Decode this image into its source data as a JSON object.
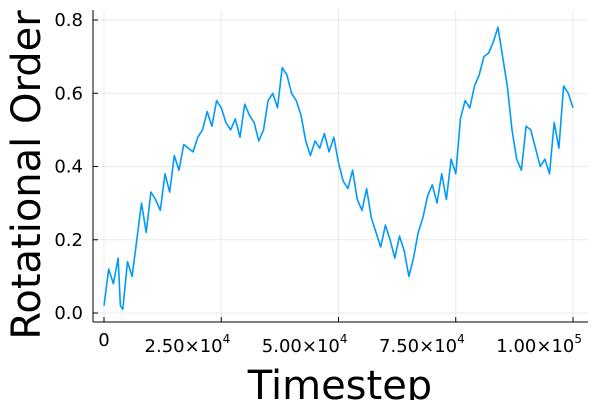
{
  "chart_data": {
    "type": "line",
    "title": "",
    "xlabel": "Timestep",
    "ylabel": "Rotational Order",
    "xlim": [
      0,
      100000
    ],
    "ylim": [
      0,
      0.8
    ],
    "grid": true,
    "legend": "none",
    "line_color": "#009af9",
    "x_ticks": [
      0,
      25000,
      50000,
      75000,
      100000
    ],
    "x_tick_labels": [
      {
        "base": "0",
        "exp": ""
      },
      {
        "base": "2.50×10",
        "exp": "4"
      },
      {
        "base": "5.00×10",
        "exp": "4"
      },
      {
        "base": "7.50×10",
        "exp": "4"
      },
      {
        "base": "1.00×10",
        "exp": "5"
      }
    ],
    "y_ticks": [
      0.0,
      0.2,
      0.4,
      0.6,
      0.8
    ],
    "y_tick_labels": [
      "0.0",
      "0.2",
      "0.4",
      "0.6",
      "0.8"
    ],
    "series": [
      {
        "x": [
          0,
          1000,
          2000,
          3000,
          3500,
          4000,
          5000,
          6000,
          7000,
          8000,
          9000,
          10000,
          11000,
          12000,
          13000,
          14000,
          15000,
          16000,
          17000,
          18000,
          19000,
          20000,
          21000,
          22000,
          23000,
          24000,
          25000,
          26000,
          27000,
          28000,
          29000,
          30000,
          31000,
          32000,
          33000,
          34000,
          35000,
          36000,
          37000,
          38000,
          39000,
          40000,
          41000,
          42000,
          43000,
          44000,
          45000,
          46000,
          47000,
          48000,
          49000,
          50000,
          51000,
          52000,
          53000,
          54000,
          55000,
          56000,
          57000,
          58000,
          59000,
          60000,
          61000,
          62000,
          63000,
          64000,
          65000,
          66000,
          67000,
          68000,
          69000,
          70000,
          71000,
          72000,
          73000,
          74000,
          75000,
          76000,
          77000,
          78000,
          79000,
          80000,
          81000,
          82000,
          83000,
          84000,
          85000,
          86000,
          87000,
          88000,
          89000,
          90000,
          91000,
          92000,
          93000,
          94000,
          95000,
          96000,
          97000,
          98000,
          99000,
          100000
        ],
        "y": [
          0.02,
          0.12,
          0.08,
          0.15,
          0.02,
          0.01,
          0.14,
          0.1,
          0.2,
          0.3,
          0.22,
          0.33,
          0.31,
          0.28,
          0.38,
          0.33,
          0.43,
          0.39,
          0.46,
          0.45,
          0.44,
          0.48,
          0.5,
          0.55,
          0.51,
          0.58,
          0.56,
          0.52,
          0.5,
          0.53,
          0.48,
          0.57,
          0.54,
          0.52,
          0.47,
          0.5,
          0.58,
          0.6,
          0.56,
          0.67,
          0.65,
          0.6,
          0.58,
          0.54,
          0.47,
          0.43,
          0.47,
          0.45,
          0.49,
          0.44,
          0.48,
          0.41,
          0.36,
          0.34,
          0.39,
          0.31,
          0.28,
          0.34,
          0.26,
          0.22,
          0.18,
          0.24,
          0.2,
          0.15,
          0.21,
          0.17,
          0.1,
          0.15,
          0.22,
          0.26,
          0.32,
          0.35,
          0.3,
          0.38,
          0.31,
          0.42,
          0.38,
          0.53,
          0.58,
          0.56,
          0.62,
          0.65,
          0.7,
          0.71,
          0.74,
          0.78,
          0.7,
          0.62,
          0.5,
          0.42,
          0.39,
          0.51,
          0.5,
          0.45,
          0.4,
          0.42,
          0.38,
          0.52,
          0.45,
          0.62,
          0.6,
          0.56
        ]
      }
    ]
  }
}
